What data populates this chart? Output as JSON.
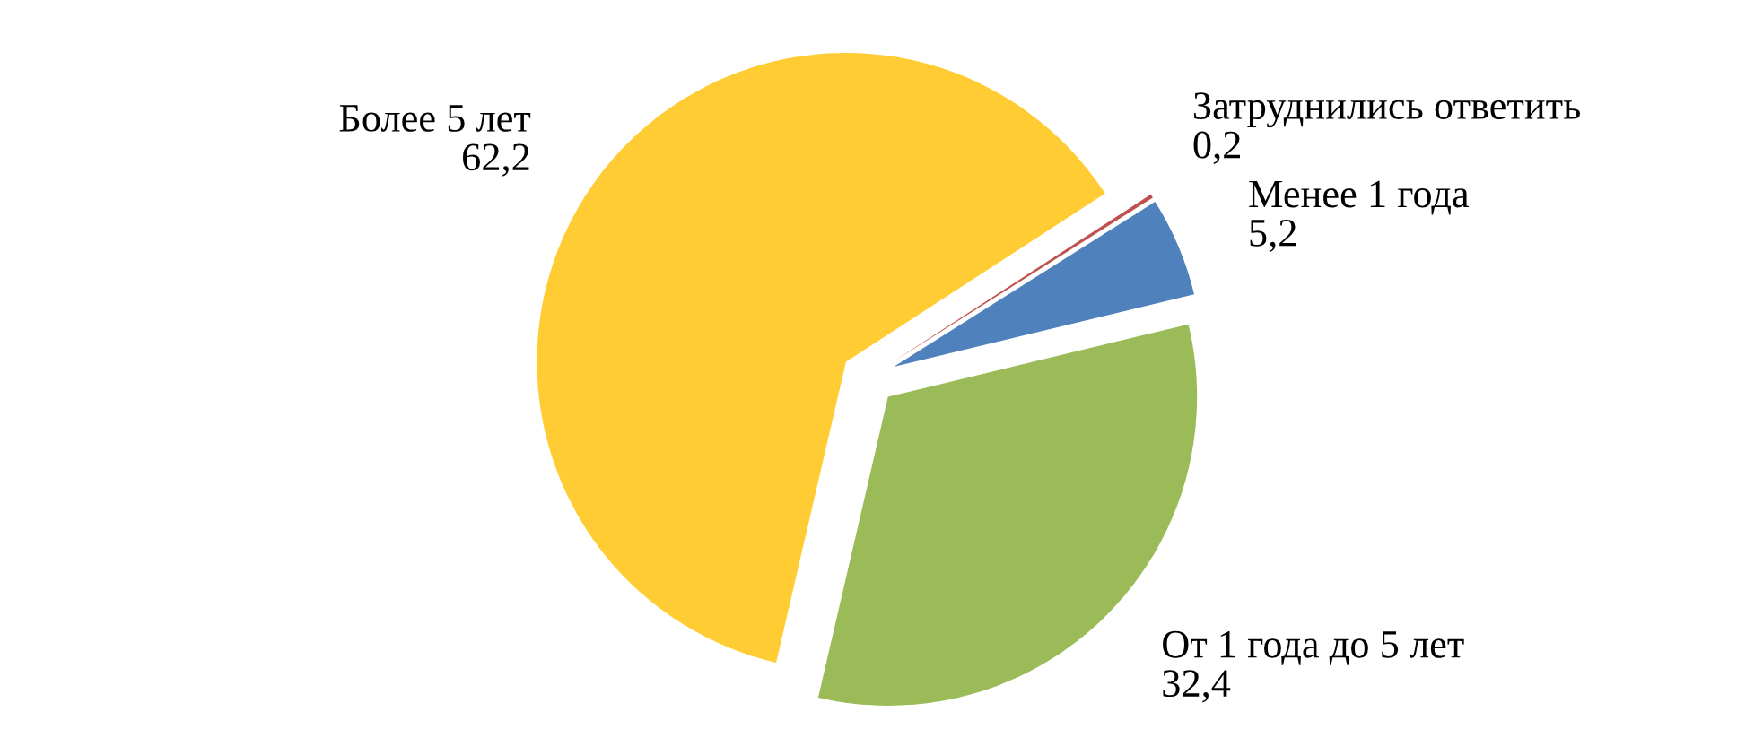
{
  "chart_data": {
    "type": "pie",
    "categories": [
      "Менее 1 года",
      "От 1 года до 5 лет",
      "Более 5 лет",
      "Затруднились ответить"
    ],
    "values": [
      5.2,
      32.4,
      62.2,
      0.2
    ],
    "value_labels": [
      "5,2",
      "32,4",
      "62,2",
      "0,2"
    ],
    "colors": [
      "#4f81bd",
      "#9bbb59",
      "#ffcc33",
      "#c0504d"
    ]
  }
}
